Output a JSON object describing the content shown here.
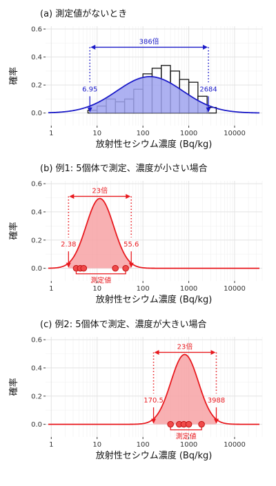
{
  "chart_data": [
    {
      "type": "histogram+density",
      "title": "(a) 測定値がないとき",
      "xlabel": "放射性セシウム濃度 (Bq/kg)",
      "ylabel": "確率",
      "x_scale": "log10",
      "xlim": [
        0.75,
        40000
      ],
      "ylim": [
        -0.09,
        0.62
      ],
      "x_ticks": [
        1,
        10,
        100,
        1000,
        10000
      ],
      "x_tick_labels": [
        "1",
        "10",
        "100",
        "1000",
        "10000"
      ],
      "y_ticks": [
        0,
        0.2,
        0.4,
        0.6
      ],
      "y_tick_labels": [
        "0.0",
        "0.2",
        "0.4",
        "0.6"
      ],
      "grid": true,
      "color": "#1a1ac8",
      "fill": "#9fa3ee",
      "curve": {
        "mu_log10": 2.15,
        "sd_log10": 0.72,
        "peak": 0.26
      },
      "histogram": {
        "bin_edges_log10": [
          0.8,
          1.0,
          1.2,
          1.4,
          1.6,
          1.8,
          2.0,
          2.2,
          2.4,
          2.6,
          2.8,
          3.0,
          3.2,
          3.4,
          3.6
        ],
        "heights": [
          0.02,
          0.05,
          0.1,
          0.08,
          0.1,
          0.17,
          0.28,
          0.32,
          0.34,
          0.3,
          0.24,
          0.22,
          0.12,
          0.04
        ]
      },
      "interval": {
        "low": 6.95,
        "high": 2684,
        "low_label": "6.95",
        "high_label": "2684",
        "ratio_label": "386倍",
        "arrow_y": 0.47
      },
      "points": [],
      "points_label": ""
    },
    {
      "type": "density",
      "title": "(b) 例1: 5個体で測定、濃度が小さい場合",
      "xlabel": "放射性セシウム濃度 (Bq/kg)",
      "ylabel": "確率",
      "x_scale": "log10",
      "xlim": [
        0.75,
        40000
      ],
      "ylim": [
        -0.09,
        0.62
      ],
      "x_ticks": [
        1,
        10,
        100,
        1000,
        10000
      ],
      "x_tick_labels": [
        "1",
        "10",
        "100",
        "1000",
        "10000"
      ],
      "y_ticks": [
        0,
        0.2,
        0.4,
        0.6
      ],
      "y_tick_labels": [
        "0.0",
        "0.2",
        "0.4",
        "0.6"
      ],
      "grid": true,
      "color": "#e8191e",
      "fill": "#f7a2a4",
      "curve": {
        "mu_log10": 1.06,
        "sd_log10": 0.3,
        "peak": 0.495
      },
      "histogram": null,
      "interval": {
        "low": 2.38,
        "high": 55.6,
        "low_label": "2.38",
        "high_label": "55.6",
        "ratio_label": "23倍",
        "arrow_y": 0.51
      },
      "points": [
        3.5,
        4.3,
        5.1,
        25,
        42
      ],
      "points_label": "測定値"
    },
    {
      "type": "density",
      "title": "(c) 例2: 5個体で測定、濃度が大きい場合",
      "xlabel": "放射性セシウム濃度 (Bq/kg)",
      "ylabel": "確率",
      "x_scale": "log10",
      "xlim": [
        0.75,
        40000
      ],
      "ylim": [
        -0.09,
        0.62
      ],
      "x_ticks": [
        1,
        10,
        100,
        1000,
        10000
      ],
      "x_tick_labels": [
        "1",
        "10",
        "100",
        "1000",
        "10000"
      ],
      "y_ticks": [
        0,
        0.2,
        0.4,
        0.6
      ],
      "y_tick_labels": [
        "0.0",
        "0.2",
        "0.4",
        "0.6"
      ],
      "grid": true,
      "color": "#e8191e",
      "fill": "#f7a2a4",
      "curve": {
        "mu_log10": 2.91,
        "sd_log10": 0.3,
        "peak": 0.495
      },
      "histogram": null,
      "interval": {
        "low": 170.5,
        "high": 3988,
        "low_label": "170.5",
        "high_label": "3988",
        "ratio_label": "23倍",
        "arrow_y": 0.51
      },
      "points": [
        400,
        620,
        780,
        1000,
        1900
      ],
      "points_label": "測定値"
    }
  ]
}
